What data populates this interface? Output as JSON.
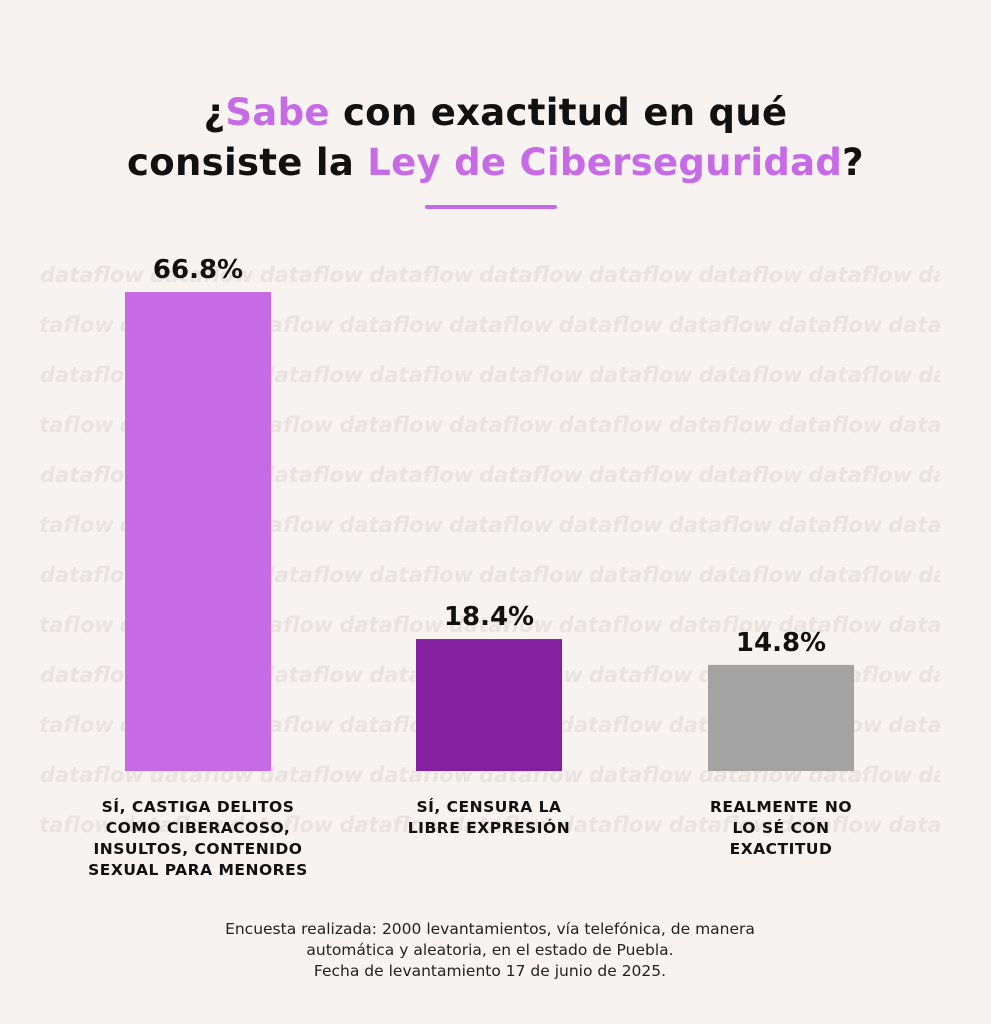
{
  "title": {
    "line1_prefix": "¿",
    "line1_accent": "Sabe",
    "line1_rest": " con exactitud en qué",
    "line2_prefix": "consiste la ",
    "line2_accent": "Ley de Ciberseguridad",
    "line2_suffix": "?"
  },
  "watermark": "dataflow",
  "chart_data": {
    "type": "bar",
    "categories": [
      "SÍ, CASTIGA DELITOS COMO CIBERACOSO, INSULTOS, CONTENIDO SEXUAL PARA MENORES",
      "SÍ, CENSURA LA LIBRE EXPRESIÓN",
      "REALMENTE NO LO SÉ CON EXACTITUD"
    ],
    "category_lines": [
      [
        "SÍ, CASTIGA DELITOS",
        "COMO CIBERACOSO,",
        "INSULTOS, CONTENIDO",
        "SEXUAL PARA MENORES"
      ],
      [
        "SÍ, CENSURA LA",
        "LIBRE EXPRESIÓN"
      ],
      [
        "REALMENTE NO",
        "LO SÉ CON",
        "EXACTITUD"
      ]
    ],
    "values": [
      66.8,
      18.4,
      14.8
    ],
    "value_labels": [
      "66.8%",
      "18.4%",
      "14.8%"
    ],
    "colors": [
      "#c76ae6",
      "#8520a0",
      "#a3a3a3"
    ],
    "ylim": [
      0,
      66.8
    ],
    "grid": false,
    "legend": "none"
  },
  "footer": {
    "line1": "Encuesta realizada: 2000 levantamientos, vía telefónica, de manera",
    "line2": "automática y aleatoria, en el estado de Puebla.",
    "line3": "Fecha de levantamiento 17 de junio de 2025."
  }
}
